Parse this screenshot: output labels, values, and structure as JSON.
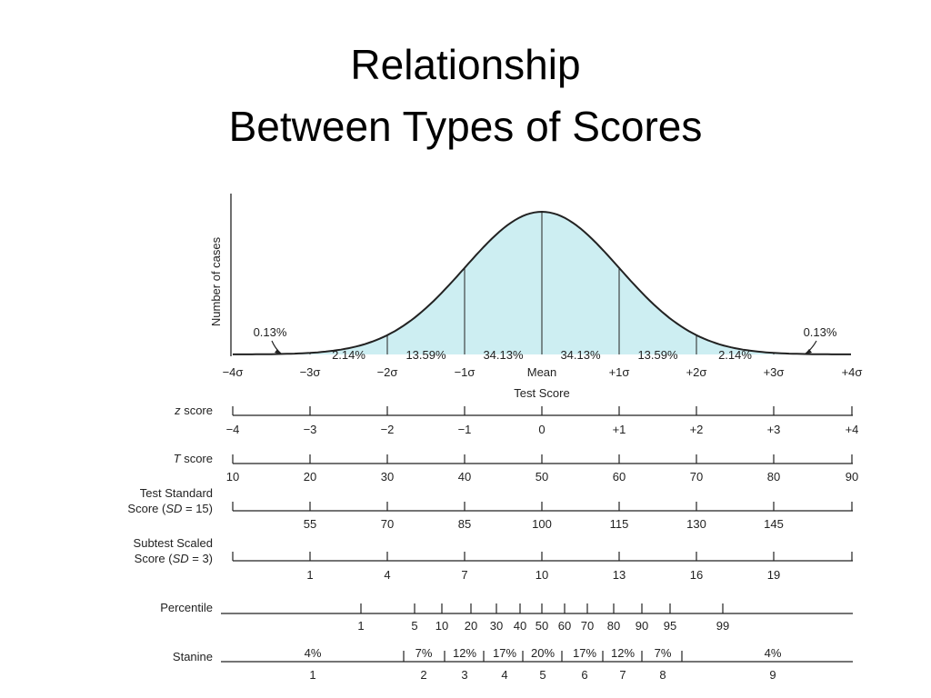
{
  "title": {
    "line1": "Relationship",
    "line2": "Between Types of Scores"
  },
  "colors": {
    "curve_fill": "#cdeef2",
    "stroke": "#222222"
  },
  "curve": {
    "y_axis_label": "Number of cases",
    "x_axis_label": "Test Score",
    "sigma_labels": [
      "−4σ",
      "−3σ",
      "−2σ",
      "−1σ",
      "Mean",
      "+1σ",
      "+2σ",
      "+3σ",
      "+4σ"
    ],
    "tail_left": "0.13%",
    "tail_right": "0.13%",
    "band_percents": [
      "2.14%",
      "13.59%",
      "34.13%",
      "34.13%",
      "13.59%",
      "2.14%"
    ]
  },
  "scales": [
    {
      "label": "z score",
      "italic": "z",
      "rest": " score",
      "values": [
        "−4",
        "−3",
        "−2",
        "−1",
        "0",
        "+1",
        "+2",
        "+3",
        "+4"
      ]
    },
    {
      "label": "T score",
      "italic": "T",
      "rest": " score",
      "values": [
        "10",
        "20",
        "30",
        "40",
        "50",
        "60",
        "70",
        "80",
        "90"
      ]
    },
    {
      "label_line1": "Test Standard",
      "label_line2_pre": "Score (",
      "label_line2_it": "SD",
      "label_line2_post": " = 15)",
      "values": [
        "",
        "55",
        "70",
        "85",
        "100",
        "115",
        "130",
        "145",
        ""
      ]
    },
    {
      "label_line1": "Subtest Scaled",
      "label_line2_pre": "Score (",
      "label_line2_it": "SD",
      "label_line2_post": " = 3)",
      "values": [
        "",
        "1",
        "4",
        "7",
        "10",
        "13",
        "16",
        "19",
        ""
      ]
    }
  ],
  "percentile": {
    "label": "Percentile",
    "values": [
      "1",
      "5",
      "10",
      "20",
      "30",
      "40",
      "50",
      "60",
      "70",
      "80",
      "90",
      "95",
      "99"
    ]
  },
  "stanine": {
    "label": "Stanine",
    "percents": [
      "4%",
      "7%",
      "12%",
      "17%",
      "20%",
      "17%",
      "12%",
      "7%",
      "4%"
    ],
    "values": [
      "1",
      "2",
      "3",
      "4",
      "5",
      "6",
      "7",
      "8",
      "9"
    ]
  }
}
